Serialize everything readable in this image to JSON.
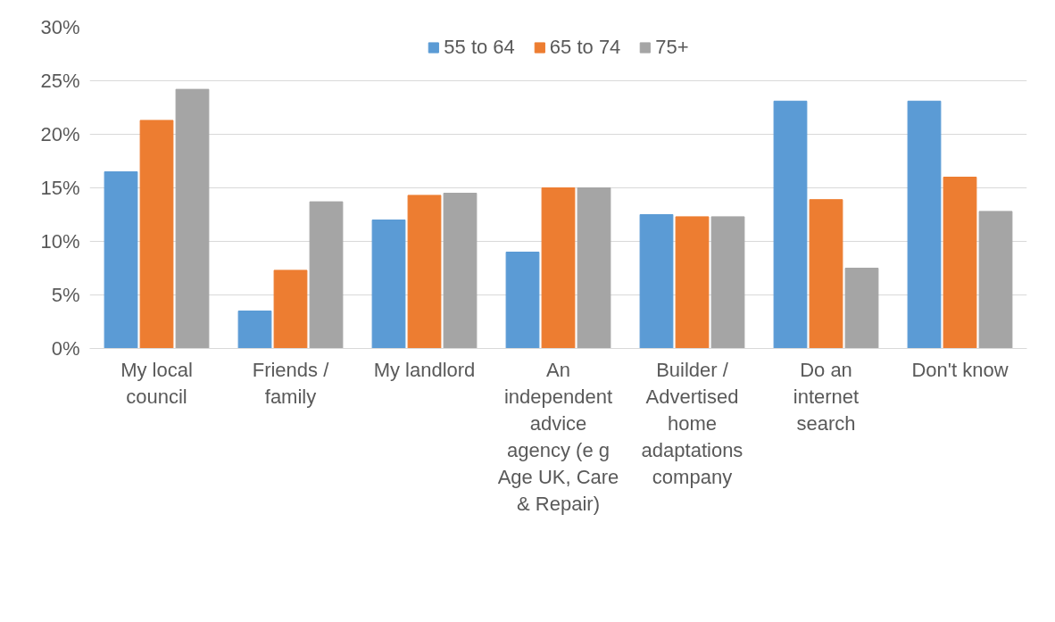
{
  "chart_data": {
    "type": "bar",
    "categories": [
      "My local council",
      "Friends / family",
      "My landlord",
      "An independent advice agency (e g Age UK, Care & Repair)",
      "Builder / Advertised home adaptations company",
      "Do an internet search",
      "Don't know"
    ],
    "series": [
      {
        "name": "55 to 64",
        "color": "#5b9bd5",
        "values": [
          16.5,
          3.5,
          12.0,
          9.0,
          12.5,
          23.1,
          23.1
        ]
      },
      {
        "name": "65 to 74",
        "color": "#ed7d31",
        "values": [
          21.3,
          7.3,
          14.3,
          15.0,
          12.3,
          13.9,
          16.0
        ]
      },
      {
        "name": "75+",
        "color": "#a5a5a5",
        "values": [
          24.2,
          13.7,
          14.5,
          15.0,
          12.3,
          7.5,
          12.8
        ]
      }
    ],
    "ylim": [
      0,
      30
    ],
    "yticks": [
      {
        "value": 0,
        "label": "0%"
      },
      {
        "value": 5,
        "label": "5%"
      },
      {
        "value": 10,
        "label": "10%"
      },
      {
        "value": 15,
        "label": "15%"
      },
      {
        "value": 20,
        "label": "20%"
      },
      {
        "value": 25,
        "label": "25%"
      },
      {
        "value": 30,
        "label": "30%"
      }
    ],
    "grid": "y",
    "legend": "top"
  }
}
